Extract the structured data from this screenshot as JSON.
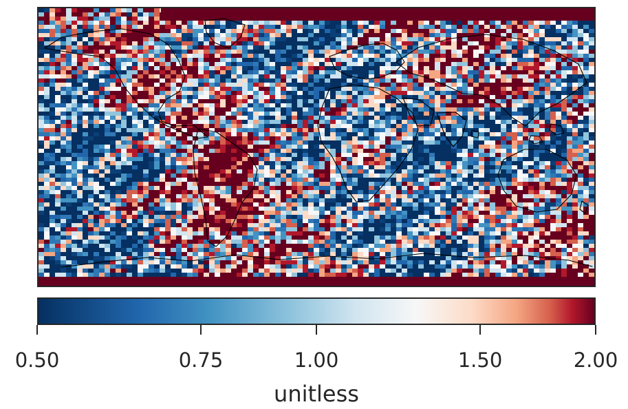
{
  "map": {
    "projection": "equirectangular",
    "extent": "global",
    "coastlines": true,
    "colormap": "RdBu_r",
    "color_scale": "log",
    "vmin": 0.5,
    "vmax": 2.0,
    "title_visible": false,
    "annotations": [
      "Large high-ratio band along the northern polar edge",
      "Large high-ratio band along the southern polar edge",
      "Mostly low ratios over the Indian Ocean and western Pacific",
      "Scattered high ratios over continents"
    ]
  },
  "colorbar": {
    "orientation": "horizontal",
    "label": "unitless",
    "ticks": [
      {
        "value": 0.5,
        "label": "0.50"
      },
      {
        "value": 0.75,
        "label": "0.75"
      },
      {
        "value": 1.0,
        "label": "1.00"
      },
      {
        "value": 1.5,
        "label": "1.50"
      },
      {
        "value": 2.0,
        "label": "2.00"
      }
    ],
    "colors": {
      "low": "#053061",
      "mid": "#f7f7f7",
      "high": "#67001f"
    }
  }
}
